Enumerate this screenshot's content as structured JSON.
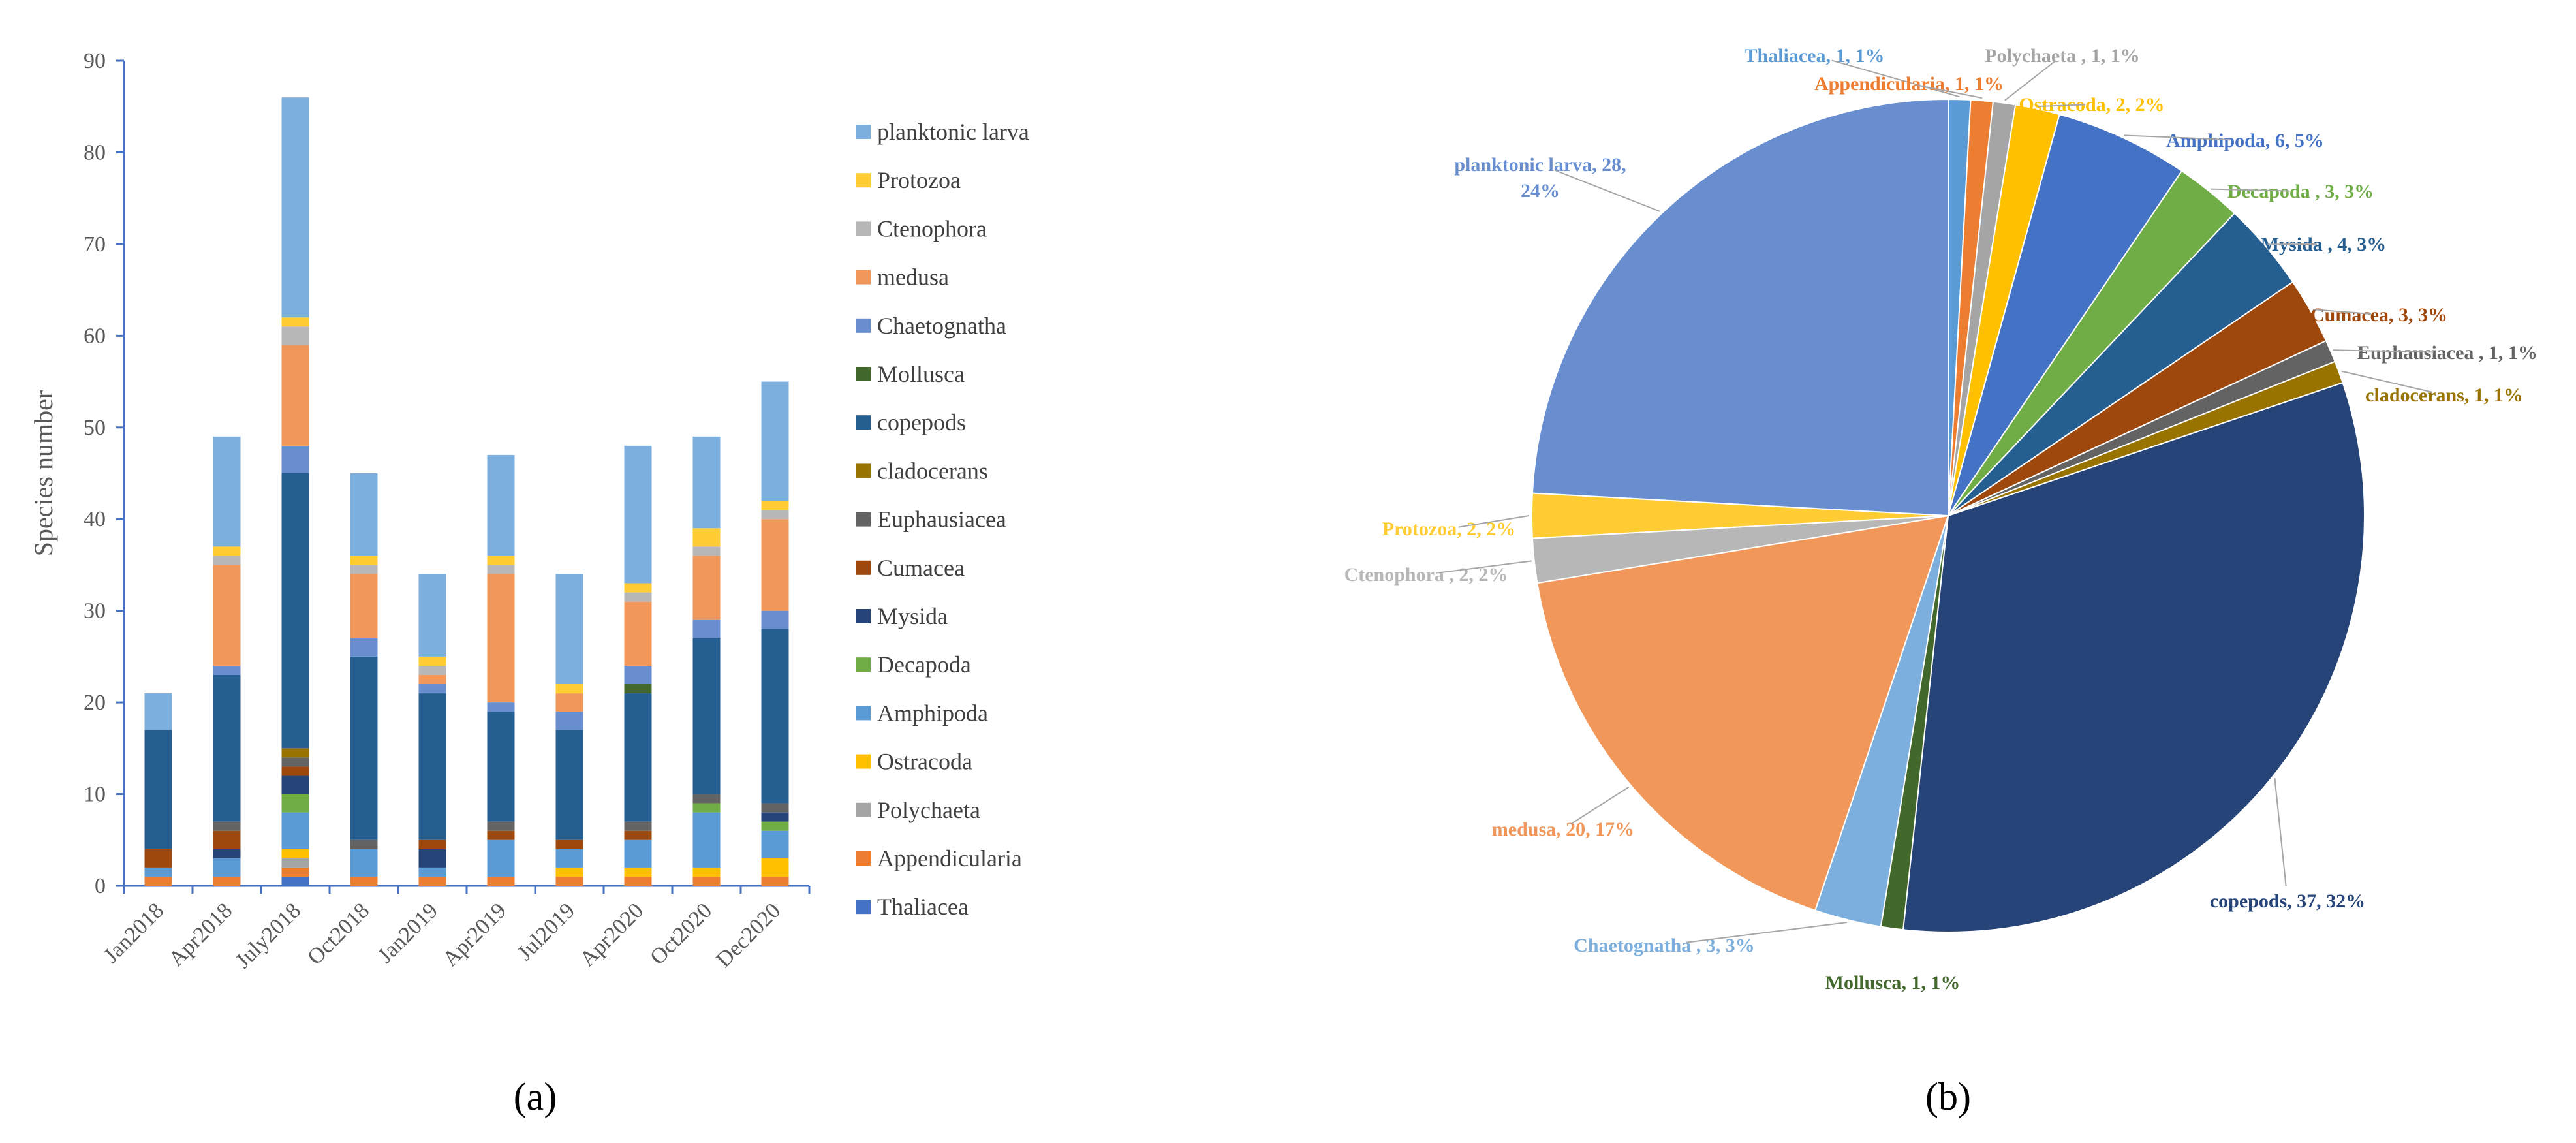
{
  "chart_data": [
    {
      "type": "bar",
      "stacked": true,
      "panel_label": "(a)",
      "ylabel": "Species number",
      "ylim": [
        0,
        90
      ],
      "yticks": [
        0,
        10,
        20,
        30,
        40,
        50,
        60,
        70,
        80,
        90
      ],
      "grid": false,
      "legend_position": "right",
      "categories": [
        "Jan2018",
        "Apr2018",
        "July2018",
        "Oct2018",
        "Jan2019",
        "Apr2019",
        "Jul2019",
        "Apr2020",
        "Oct2020",
        "Dec2020"
      ],
      "series": [
        {
          "name": "Thaliacea",
          "color": "#4472C4",
          "values": [
            0,
            0,
            1,
            0,
            0,
            0,
            0,
            0,
            0,
            0
          ]
        },
        {
          "name": "Appendicularia",
          "color": "#ED7D31",
          "values": [
            1,
            1,
            1,
            1,
            1,
            1,
            1,
            1,
            1,
            1
          ]
        },
        {
          "name": "Polychaeta",
          "color": "#A5A5A5",
          "values": [
            0,
            0,
            1,
            0,
            0,
            0,
            0,
            0,
            0,
            0
          ]
        },
        {
          "name": "Ostracoda",
          "color": "#FFC000",
          "values": [
            0,
            0,
            1,
            0,
            0,
            0,
            1,
            1,
            1,
            2
          ]
        },
        {
          "name": "Amphipoda",
          "color": "#5B9BD5",
          "values": [
            1,
            2,
            4,
            3,
            1,
            4,
            2,
            3,
            6,
            3
          ]
        },
        {
          "name": "Decapoda",
          "color": "#70AD47",
          "values": [
            0,
            0,
            2,
            0,
            0,
            0,
            0,
            0,
            1,
            1
          ]
        },
        {
          "name": "Mysida",
          "color": "#264478",
          "values": [
            0,
            1,
            2,
            0,
            2,
            0,
            0,
            0,
            0,
            1
          ]
        },
        {
          "name": "Cumacea",
          "color": "#9E480E",
          "values": [
            2,
            2,
            1,
            0,
            1,
            1,
            1,
            1,
            0,
            0
          ]
        },
        {
          "name": "Euphausiacea",
          "color": "#636363",
          "values": [
            0,
            1,
            1,
            1,
            0,
            1,
            0,
            1,
            1,
            1
          ]
        },
        {
          "name": "cladocerans",
          "color": "#997300",
          "values": [
            0,
            0,
            1,
            0,
            0,
            0,
            0,
            0,
            0,
            0
          ]
        },
        {
          "name": "copepods",
          "color": "#255E91",
          "values": [
            13,
            16,
            30,
            20,
            16,
            12,
            12,
            14,
            17,
            19
          ]
        },
        {
          "name": "Mollusca",
          "color": "#43682B",
          "values": [
            0,
            0,
            0,
            0,
            0,
            0,
            0,
            1,
            0,
            0
          ]
        },
        {
          "name": "Chaetognatha",
          "color": "#698ED0",
          "values": [
            0,
            1,
            3,
            2,
            1,
            1,
            2,
            2,
            2,
            2
          ]
        },
        {
          "name": "medusa",
          "color": "#F1975A",
          "values": [
            0,
            11,
            11,
            7,
            1,
            14,
            2,
            7,
            7,
            10
          ]
        },
        {
          "name": "Ctenophora",
          "color": "#B7B7B7",
          "values": [
            0,
            1,
            2,
            1,
            1,
            1,
            0,
            1,
            1,
            1
          ]
        },
        {
          "name": "Protozoa",
          "color": "#FFCD33",
          "values": [
            0,
            1,
            1,
            1,
            1,
            1,
            1,
            1,
            2,
            1
          ]
        },
        {
          "name": "planktonic larva",
          "color": "#7CAFDD",
          "values": [
            4,
            12,
            24,
            9,
            9,
            11,
            12,
            15,
            10,
            13
          ]
        }
      ]
    },
    {
      "type": "pie",
      "panel_label": "(b)",
      "slices": [
        {
          "name": "Thaliacea",
          "value": 1,
          "label": "Thaliacea, 1, 1%",
          "color": "#5B9BD5",
          "label_color": "#5B9BD5"
        },
        {
          "name": "Appendicularia",
          "value": 1,
          "label": "Appendicularia, 1, 1%",
          "color": "#ED7D31",
          "label_color": "#ED7D31"
        },
        {
          "name": "Polychaeta",
          "value": 1,
          "label": "Polychaeta , 1, 1%",
          "color": "#A5A5A5",
          "label_color": "#A5A5A5"
        },
        {
          "name": "Ostracoda",
          "value": 2,
          "label": "Ostracoda, 2, 2%",
          "color": "#FFC000",
          "label_color": "#FFC000"
        },
        {
          "name": "Amphipoda",
          "value": 6,
          "label": "Amphipoda, 6, 5%",
          "color": "#4472C4",
          "label_color": "#4472C4"
        },
        {
          "name": "Decapoda",
          "value": 3,
          "label": "Decapoda , 3, 3%",
          "color": "#70AD47",
          "label_color": "#70AD47"
        },
        {
          "name": "Mysida",
          "value": 4,
          "label": "Mysida , 4, 3%",
          "color": "#255E91",
          "label_color": "#255E91"
        },
        {
          "name": "Cumacea",
          "value": 3,
          "label": "Cumacea, 3, 3%",
          "color": "#9E480E",
          "label_color": "#9E480E"
        },
        {
          "name": "Euphausiacea",
          "value": 1,
          "label": "Euphausiacea , 1, 1%",
          "color": "#636363",
          "label_color": "#636363"
        },
        {
          "name": "cladocerans",
          "value": 1,
          "label": "cladocerans, 1, 1%",
          "color": "#997300",
          "label_color": "#997300"
        },
        {
          "name": "copepods",
          "value": 37,
          "label": "copepods, 37, 32%",
          "color": "#264478",
          "label_color": "#264478"
        },
        {
          "name": "Mollusca",
          "value": 1,
          "label": "Mollusca, 1, 1%",
          "color": "#43682B",
          "label_color": "#43682B"
        },
        {
          "name": "Chaetognatha",
          "value": 3,
          "label": "Chaetognatha , 3, 3%",
          "color": "#7CAFDD",
          "label_color": "#7CAFDD"
        },
        {
          "name": "medusa",
          "value": 20,
          "label": "medusa, 20, 17%",
          "color": "#F1975A",
          "label_color": "#F1975A"
        },
        {
          "name": "Ctenophora",
          "value": 2,
          "label": "Ctenophora , 2, 2%",
          "color": "#B7B7B7",
          "label_color": "#B7B7B7"
        },
        {
          "name": "Protozoa",
          "value": 2,
          "label": "Protozoa, 2, 2%",
          "color": "#FFCD33",
          "label_color": "#FFCD33"
        },
        {
          "name": "planktonic larva",
          "value": 28,
          "label": "planktonic larva, 28, 24%",
          "color": "#698ED0",
          "label_color": "#698ED0"
        }
      ]
    }
  ]
}
